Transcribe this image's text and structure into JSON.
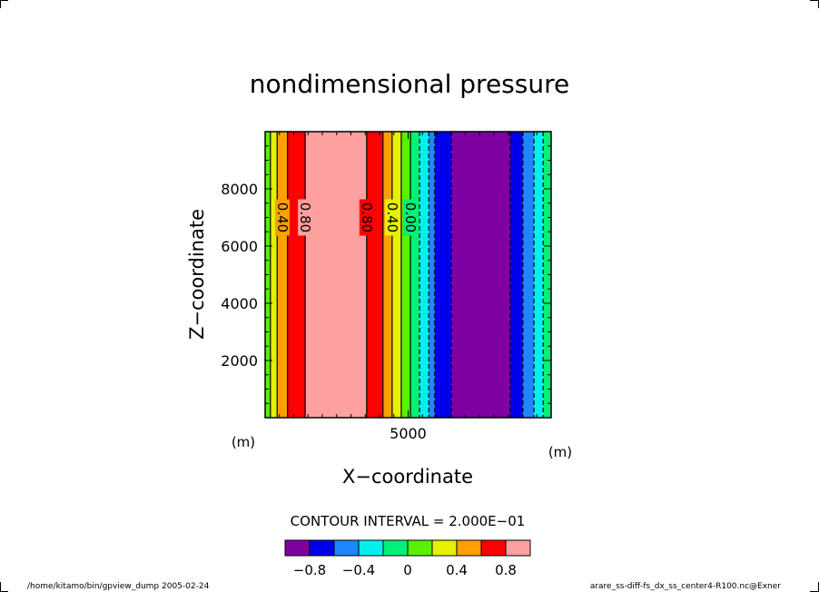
{
  "chart_data": {
    "type": "heatmap",
    "title": "nondimensional pressure",
    "xlabel": "X−coordinate",
    "ylabel": "Z−coordinate",
    "x_unit": "(m)",
    "y_unit": "(m)",
    "xlim": [
      0,
      10000
    ],
    "ylim": [
      0,
      10000
    ],
    "xticks": [
      {
        "value": 5000,
        "label": "5000"
      }
    ],
    "yticks": [
      {
        "value": 2000,
        "label": "2000"
      },
      {
        "value": 4000,
        "label": "4000"
      },
      {
        "value": 6000,
        "label": "6000"
      },
      {
        "value": 8000,
        "label": "8000"
      }
    ],
    "contour_interval_text": "CONTOUR INTERVAL = 2.000E−01",
    "levels": [
      -0.8,
      -0.6,
      -0.4,
      -0.2,
      0,
      0.2,
      0.4,
      0.6,
      0.8
    ],
    "colors": [
      "#7f00a0",
      "#0000f0",
      "#1e86ff",
      "#00f0f0",
      "#00f078",
      "#5af000",
      "#e6f000",
      "#ffa000",
      "#ff0000",
      "#ffa0a0"
    ],
    "colorbar_labels": [
      {
        "value": -0.8,
        "label": "−0.8"
      },
      {
        "value": -0.4,
        "label": "−0.4"
      },
      {
        "value": 0,
        "label": "0"
      },
      {
        "value": 0.4,
        "label": "0.4"
      },
      {
        "value": 0.8,
        "label": "0.8"
      }
    ],
    "bands": [
      {
        "x0": 0,
        "x1": 185,
        "class": 5
      },
      {
        "x0": 185,
        "x1": 420,
        "class": 6
      },
      {
        "x0": 420,
        "x1": 785,
        "class": 7
      },
      {
        "x0": 785,
        "x1": 1400,
        "class": 8
      },
      {
        "x0": 1400,
        "x1": 3550,
        "class": 9
      },
      {
        "x0": 3550,
        "x1": 4120,
        "class": 8
      },
      {
        "x0": 4120,
        "x1": 4440,
        "class": 7
      },
      {
        "x0": 4440,
        "x1": 4760,
        "class": 6
      },
      {
        "x0": 4760,
        "x1": 5080,
        "class": 5
      },
      {
        "x0": 5080,
        "x1": 5400,
        "class": 4
      },
      {
        "x0": 5400,
        "x1": 5720,
        "class": 3
      },
      {
        "x0": 5720,
        "x1": 5930,
        "class": 2
      },
      {
        "x0": 5930,
        "x1": 6510,
        "class": 1
      },
      {
        "x0": 6510,
        "x1": 8570,
        "class": 0
      },
      {
        "x0": 8570,
        "x1": 9010,
        "class": 1
      },
      {
        "x0": 9010,
        "x1": 9400,
        "class": 2
      },
      {
        "x0": 9400,
        "x1": 9720,
        "class": 3
      },
      {
        "x0": 9720,
        "x1": 10000,
        "class": 4
      }
    ],
    "contour_labels": [
      {
        "x": 600,
        "text": "0.40"
      },
      {
        "x": 1400,
        "text": "0.80"
      },
      {
        "x": 3550,
        "text": "0.80"
      },
      {
        "x": 4440,
        "text": "0.40"
      },
      {
        "x": 5080,
        "text": "0.00"
      }
    ],
    "footer_left": "/home/kitamo/bin/gpview_dump  2005-02-24",
    "footer_right": "arare_ss-diff-fs_dx_ss_center4-R100.nc@Exner"
  }
}
